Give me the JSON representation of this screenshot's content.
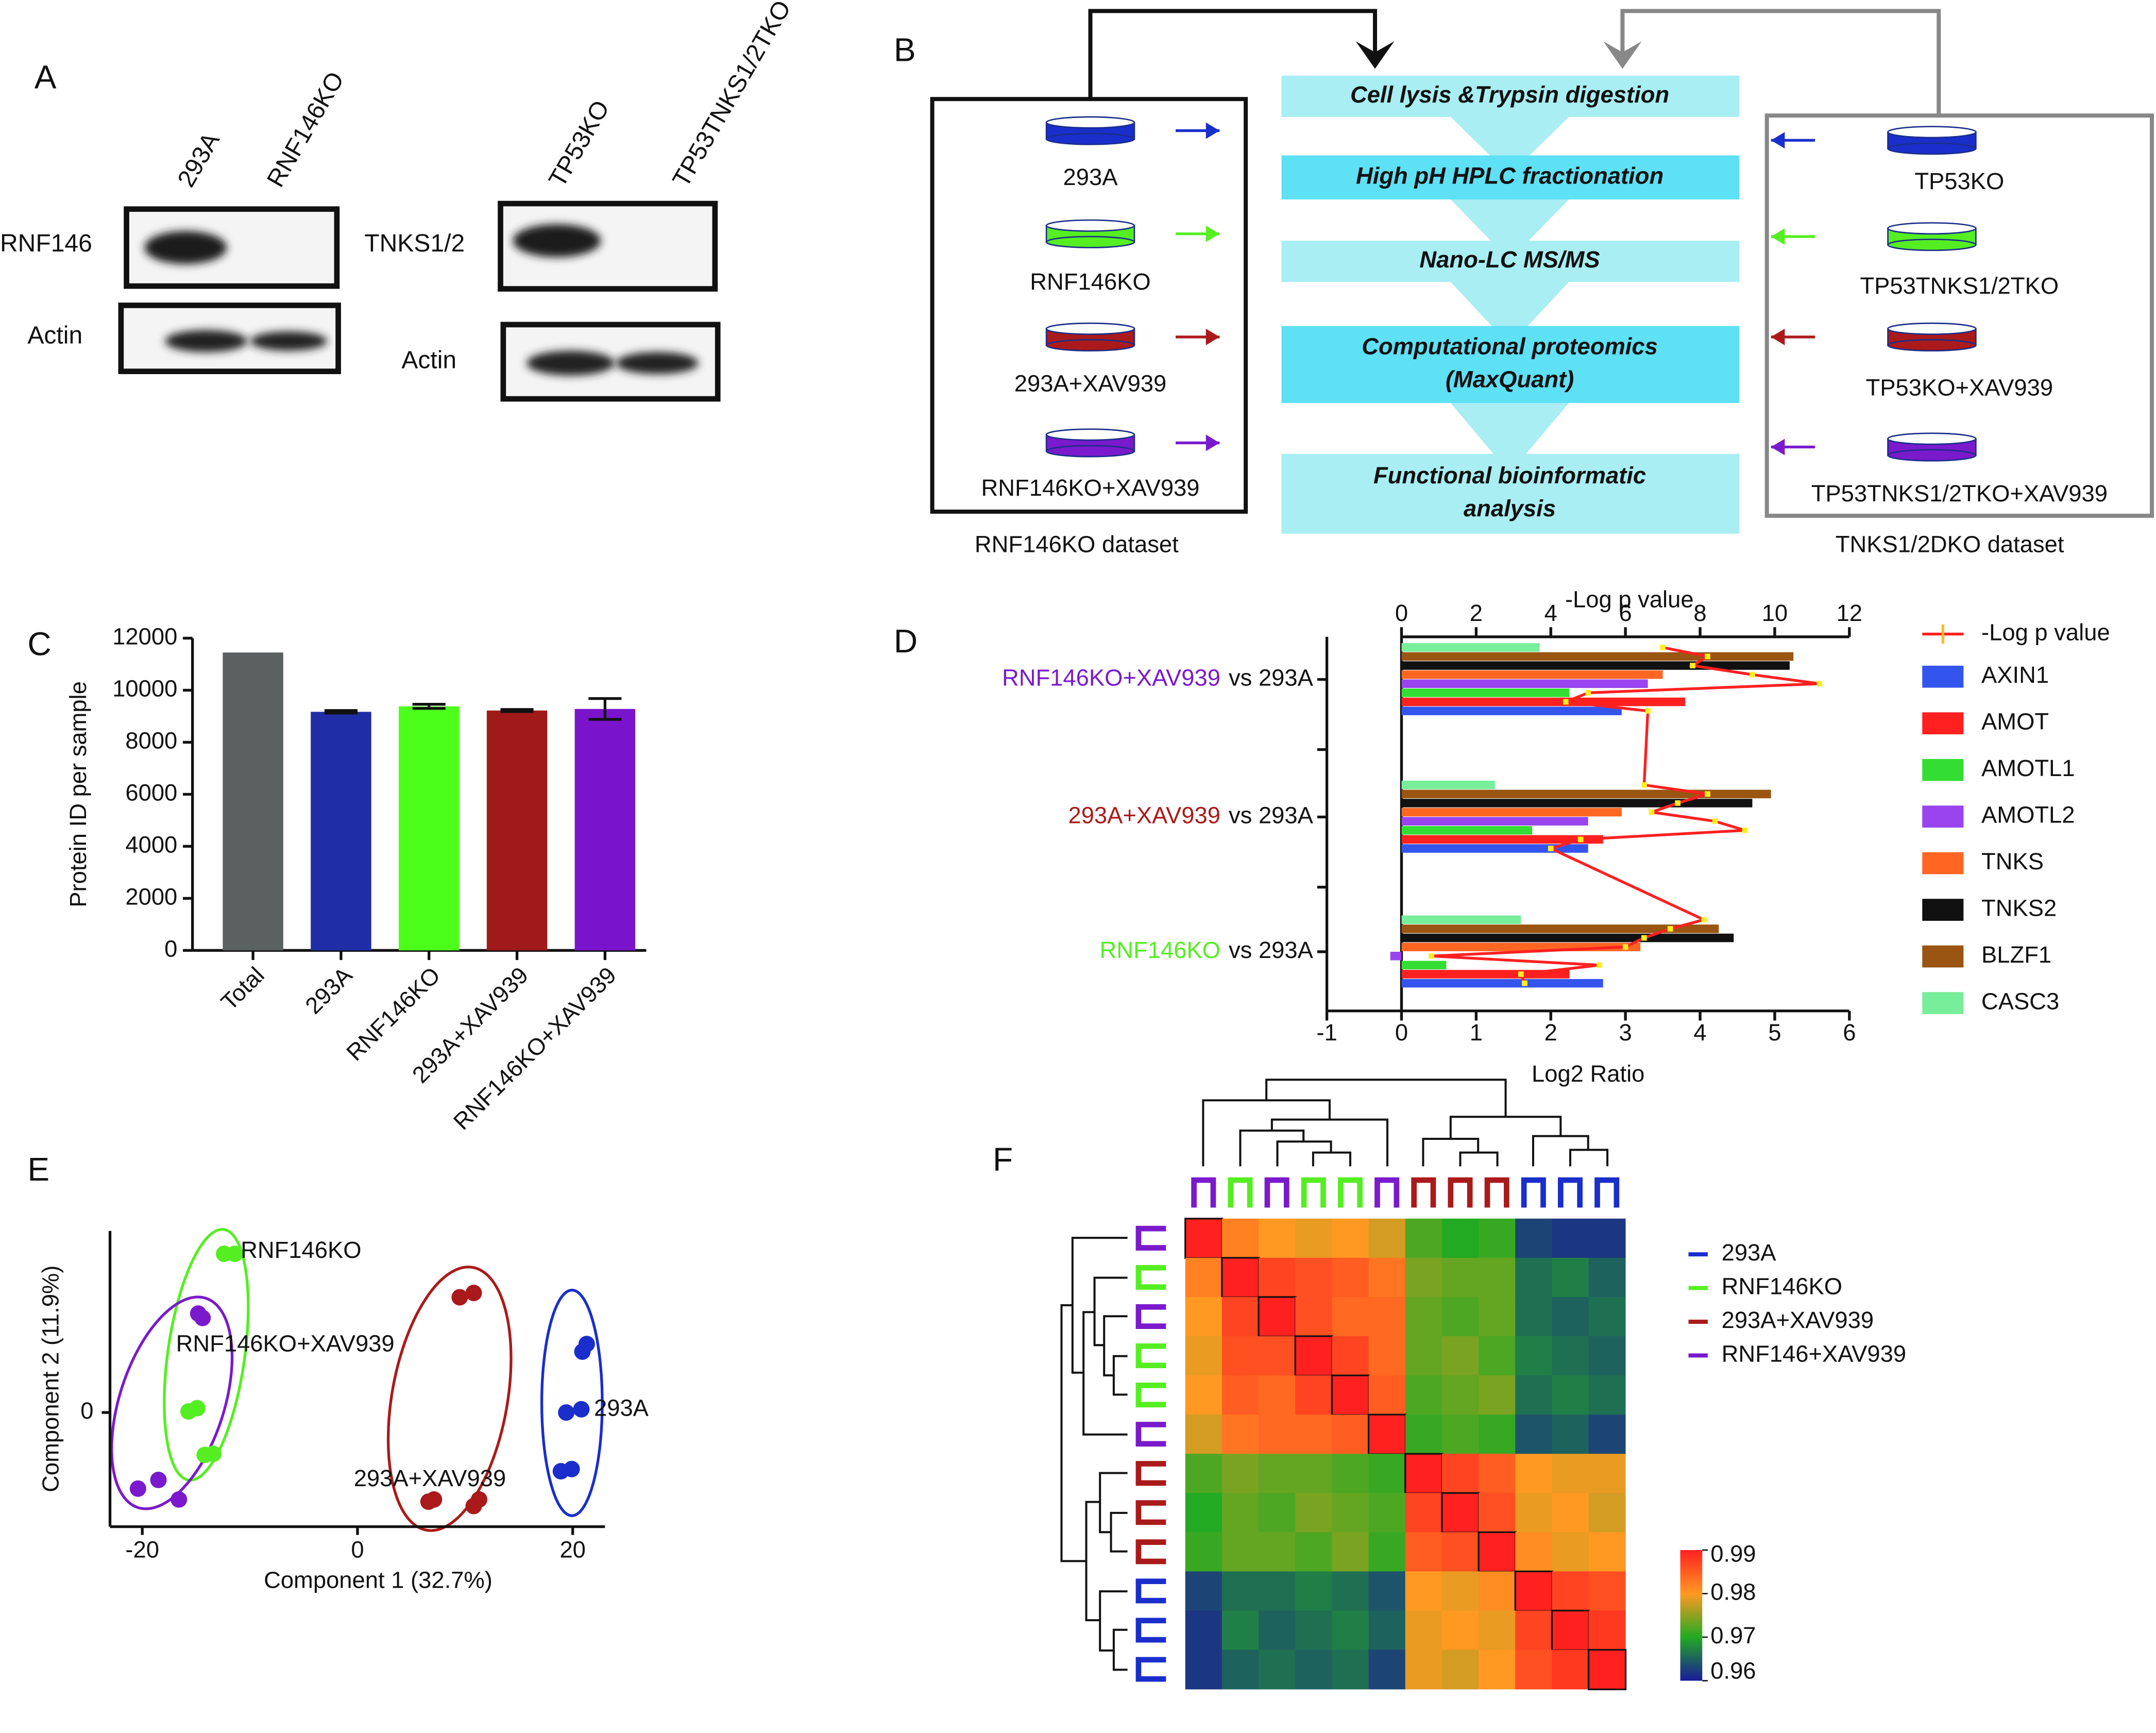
{
  "panel_labels": [
    "A",
    "B",
    "C",
    "D",
    "E",
    "F"
  ],
  "blot": {
    "lanes_left": [
      "293A",
      "RNF146KO"
    ],
    "lanes_right": [
      "TP53KO",
      "TP53TNKS1/2TKO"
    ],
    "rows_left": [
      "RNF146",
      "Actin"
    ],
    "rows_right": [
      "TNKS1/2",
      "Actin"
    ]
  },
  "workflow": {
    "steps": [
      [
        "Cell lysis &Trypsin digestion"
      ],
      [
        "High pH HPLC fractionation"
      ],
      [
        "Nano-LC MS/MS"
      ],
      [
        "Computational proteomics",
        "(MaxQuant)"
      ],
      [
        "Functional bioinformatic",
        "analysis"
      ]
    ],
    "colors": [
      "#1a2ecc",
      "#55ee22",
      "#aa1a1a",
      "#7a1acc"
    ],
    "left": {
      "samples": [
        "293A",
        "RNF146KO",
        "293A+XAV939",
        "RNF146KO+XAV939"
      ],
      "caption": "RNF146KO dataset"
    },
    "right": {
      "samples": [
        "TP53KO",
        "TP53TNKS1/2TKO",
        "TP53KO+XAV939",
        "TP53TNKS1/2TKO+XAV939"
      ],
      "caption": "TNKS1/2DKO dataset"
    }
  },
  "chart_data": [
    {
      "type": "bar",
      "ylabel": "Protein ID per sample",
      "categories": [
        "Total",
        "293A",
        "RNF146KO",
        "293A+XAV939",
        "RNF146KO+XAV939"
      ],
      "values": [
        11450,
        9170,
        9380,
        9220,
        9280
      ],
      "errors": [
        null,
        50,
        80,
        40,
        400
      ],
      "colors": [
        "#5b6061",
        "#1f2ea6",
        "#4cff1a",
        "#a01a1a",
        "#7a14cc"
      ],
      "label_colors": [
        "#000000",
        "#1f2ea6",
        "#4cff1a",
        "#a01a1a",
        "#7a14cc"
      ],
      "ylim": [
        0,
        12000
      ],
      "yticks": [
        0,
        2000,
        4000,
        6000,
        8000,
        10000,
        12000
      ]
    },
    {
      "type": "hbar",
      "xlabel": "Log2 Ratio",
      "x2label": "-Log p value",
      "categories": [
        "RNF146KO+XAV939",
        "293A+XAV939",
        "RNF146KO"
      ],
      "category_colors": [
        "#7a1acc",
        "#aa1a1a",
        "#55ee22"
      ],
      "category_suffix": "vs 293A",
      "xlim": [
        -1,
        6
      ],
      "xticks": [
        -1,
        0,
        1,
        2,
        3,
        4,
        5,
        6
      ],
      "x2lim": [
        0,
        12
      ],
      "x2ticks": [
        0,
        2,
        4,
        6,
        8,
        10,
        12
      ],
      "p_line": {
        "name": "-Log p value",
        "color": "#ff2020"
      },
      "series": [
        {
          "name": "AXIN1",
          "color": "#3355ee",
          "values": [
            2.95,
            2.5,
            2.7
          ],
          "log_p": [
            6.6,
            4.0,
            3.3
          ]
        },
        {
          "name": "AMOT",
          "color": "#ff2020",
          "values": [
            3.8,
            2.7,
            2.25
          ],
          "log_p": [
            4.4,
            4.8,
            3.2
          ]
        },
        {
          "name": "AMOTL1",
          "color": "#33dd33",
          "values": [
            2.25,
            1.75,
            0.6
          ],
          "log_p": [
            5.0,
            9.2,
            5.3
          ]
        },
        {
          "name": "AMOTL2",
          "color": "#9944ee",
          "values": [
            3.3,
            2.5,
            -0.15
          ],
          "log_p": [
            11.2,
            8.4,
            0.8
          ]
        },
        {
          "name": "TNKS",
          "color": "#ff6622",
          "values": [
            3.5,
            2.95,
            3.2
          ],
          "log_p": [
            9.4,
            6.7,
            6.0
          ]
        },
        {
          "name": "TNKS2",
          "color": "#111111",
          "values": [
            5.2,
            4.7,
            4.45
          ],
          "log_p": [
            7.8,
            7.4,
            6.5
          ]
        },
        {
          "name": "BLZF1",
          "color": "#995511",
          "values": [
            5.25,
            4.95,
            4.25
          ],
          "log_p": [
            8.2,
            8.2,
            7.2
          ]
        },
        {
          "name": "CASC3",
          "color": "#77ee99",
          "values": [
            1.85,
            1.25,
            1.6
          ],
          "log_p": [
            7.0,
            6.5,
            8.1
          ]
        }
      ]
    },
    {
      "type": "scatter",
      "xlabel": "Component 1 (32.7%)",
      "ylabel": "Component 2 (11.9%)",
      "xlim": [
        -23,
        23
      ],
      "xticks": [
        -20,
        0,
        20
      ],
      "ylim": [
        -10.5,
        16.7
      ],
      "yticks": [
        0
      ],
      "series": [
        {
          "name": "RNF146KO",
          "color": "#55ee22",
          "x": [
            -12.4,
            -11.4,
            -14.9,
            -15.7,
            -14.2,
            -13.4
          ],
          "y": [
            14.6,
            14.6,
            0.4,
            0.1,
            -3.9,
            -3.8
          ]
        },
        {
          "name": "RNF146KO+XAV939",
          "color": "#7a1acc",
          "x": [
            -14.8,
            -14.4,
            -20.4,
            -18.5,
            -16.6
          ],
          "y": [
            9.1,
            8.7,
            -7.0,
            -6.2,
            -8.0
          ]
        },
        {
          "name": "293A+XAV939",
          "color": "#aa1a1a",
          "x": [
            9.5,
            10.8,
            6.6,
            7.1,
            10.8,
            11.3
          ],
          "y": [
            10.6,
            11.0,
            -8.2,
            -8.0,
            -8.6,
            -8.0
          ]
        },
        {
          "name": "293A",
          "color": "#1a2ecc",
          "x": [
            21.3,
            20.9,
            20.8,
            19.4,
            18.9,
            19.9
          ],
          "y": [
            6.3,
            5.6,
            0.3,
            0.0,
            -5.4,
            -5.2
          ]
        }
      ]
    },
    {
      "type": "heatmap",
      "legend": [
        {
          "name": "293A",
          "color": "#1a2ecc"
        },
        {
          "name": "RNF146KO",
          "color": "#55ee22"
        },
        {
          "name": "293A+XAV939",
          "color": "#aa1a1a"
        },
        {
          "name": "RNF146+XAV939",
          "color": "#7a1acc"
        }
      ],
      "groups": [
        3,
        1,
        3,
        1,
        1,
        3,
        2,
        2,
        2,
        0,
        0,
        0
      ],
      "color_scale": {
        "lim": [
          0.96,
          0.99
        ],
        "ticks": [
          0.96,
          0.97,
          0.98,
          0.99
        ],
        "colors": [
          "#1a1a9a",
          "#22aa22",
          "#ff9922",
          "#ff2020"
        ]
      },
      "values": [
        [
          1,
          0.982,
          0.98,
          0.979,
          0.98,
          0.978,
          0.972,
          0.97,
          0.971,
          0.963,
          0.962,
          0.962
        ],
        [
          0.982,
          1,
          0.987,
          0.986,
          0.985,
          0.983,
          0.974,
          0.973,
          0.973,
          0.966,
          0.967,
          0.965
        ],
        [
          0.98,
          0.987,
          1,
          0.986,
          0.984,
          0.984,
          0.973,
          0.972,
          0.973,
          0.966,
          0.965,
          0.966
        ],
        [
          0.979,
          0.986,
          0.986,
          1,
          0.987,
          0.984,
          0.973,
          0.974,
          0.972,
          0.967,
          0.966,
          0.965
        ],
        [
          0.98,
          0.985,
          0.984,
          0.987,
          1,
          0.985,
          0.972,
          0.973,
          0.974,
          0.966,
          0.967,
          0.966
        ],
        [
          0.978,
          0.983,
          0.984,
          0.984,
          0.985,
          1,
          0.971,
          0.972,
          0.971,
          0.964,
          0.965,
          0.963
        ],
        [
          0.972,
          0.974,
          0.973,
          0.973,
          0.972,
          0.971,
          1,
          0.987,
          0.985,
          0.98,
          0.979,
          0.979
        ],
        [
          0.97,
          0.973,
          0.972,
          0.974,
          0.973,
          0.972,
          0.987,
          1,
          0.986,
          0.979,
          0.98,
          0.978
        ],
        [
          0.971,
          0.973,
          0.973,
          0.972,
          0.974,
          0.971,
          0.985,
          0.986,
          1,
          0.981,
          0.979,
          0.98
        ],
        [
          0.963,
          0.966,
          0.966,
          0.967,
          0.966,
          0.964,
          0.98,
          0.979,
          0.981,
          1,
          0.987,
          0.986
        ],
        [
          0.962,
          0.967,
          0.965,
          0.966,
          0.967,
          0.965,
          0.979,
          0.98,
          0.979,
          0.987,
          1,
          0.988
        ],
        [
          0.962,
          0.965,
          0.966,
          0.965,
          0.966,
          0.963,
          0.979,
          0.978,
          0.98,
          0.986,
          0.988,
          1
        ]
      ]
    }
  ]
}
